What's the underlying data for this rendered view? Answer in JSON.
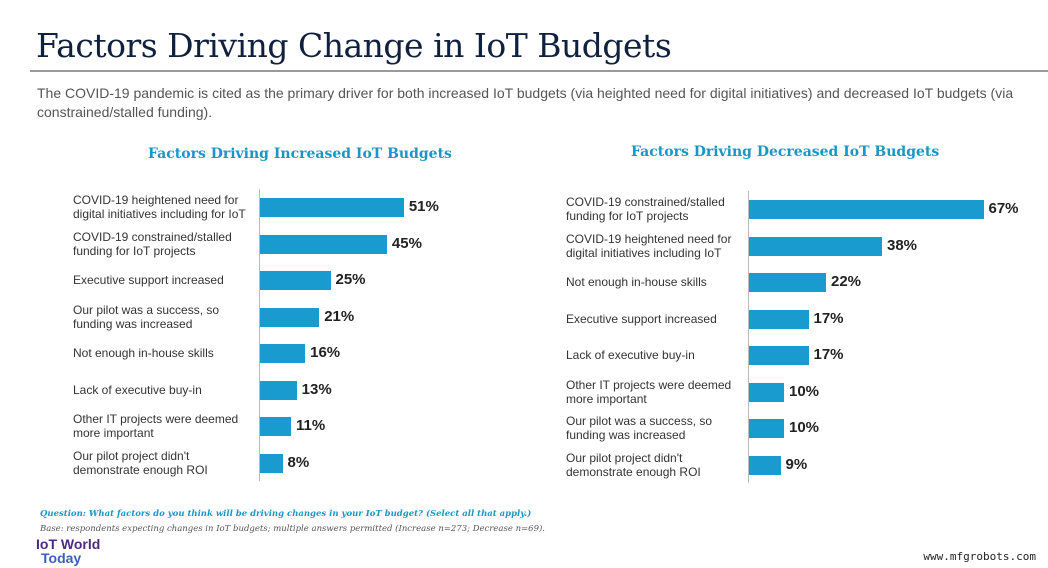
{
  "title": "Factors Driving Change in IoT Budgets",
  "subtitle": "The COVID-19 pandemic is cited as the primary driver for both increased IoT budgets (via heighted need for digital initiatives) and decreased IoT budgets (via constrained/stalled funding).",
  "chart_data": [
    {
      "type": "bar",
      "orientation": "horizontal",
      "title": "Factors Driving Increased IoT Budgets",
      "categories": [
        "COVID-19 heightened need for digital initiatives including for IoT",
        "COVID-19 constrained/stalled funding for IoT projects",
        "Executive support increased",
        "Our pilot was a success, so funding was increased",
        "Not enough in-house skills",
        "Lack of executive buy-in",
        "Other IT projects were deemed more important",
        "Our pilot project didn't demonstrate enough ROI"
      ],
      "values": [
        51,
        45,
        25,
        21,
        16,
        13,
        11,
        8
      ],
      "labels": [
        "51%",
        "45%",
        "25%",
        "21%",
        "16%",
        "13%",
        "11%",
        "8%"
      ],
      "color": "#1a9bcf"
    },
    {
      "type": "bar",
      "orientation": "horizontal",
      "title": "Factors Driving Decreased IoT Budgets",
      "categories": [
        "COVID-19 constrained/stalled funding for IoT projects",
        "COVID-19 heightened need for digital initiatives including IoT",
        "Not enough in-house skills",
        "Executive support increased",
        "Lack of executive buy-in",
        "Other IT projects were deemed more important",
        "Our pilot was a success, so funding was increased",
        "Our pilot project didn't demonstrate enough ROI"
      ],
      "values": [
        67,
        38,
        22,
        17,
        17,
        10,
        10,
        9
      ],
      "labels": [
        "67%",
        "38%",
        "22%",
        "17%",
        "17%",
        "10%",
        "10%",
        "9%"
      ],
      "color": "#1a9bcf"
    }
  ],
  "question": "Question: What factors do you think will be driving changes in your IoT budget? (Select all that apply.)",
  "base": "Base: respondents expecting changes in IoT budgets; multiple answers permitted (Increase n=273; Decrease n=69).",
  "logo": {
    "line1": "IoT World",
    "line2": "Today"
  },
  "watermark": "www.mfgrobots.com"
}
